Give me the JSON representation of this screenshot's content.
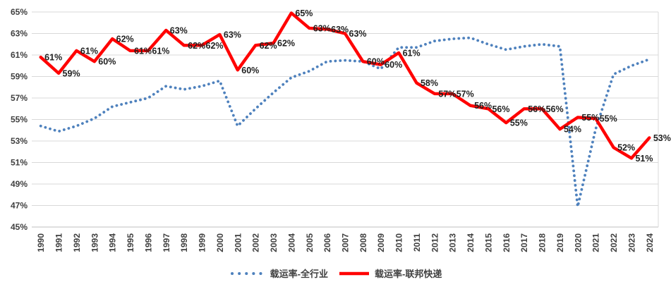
{
  "chart_data": {
    "type": "line",
    "title": "",
    "categories": [
      "1990",
      "1991",
      "1992",
      "1993",
      "1994",
      "1995",
      "1996",
      "1997",
      "1998",
      "1999",
      "2000",
      "2001",
      "2002",
      "2003",
      "2004",
      "2005",
      "2006",
      "2007",
      "2008",
      "2009",
      "2010",
      "2011",
      "2012",
      "2013",
      "2014",
      "2015",
      "2016",
      "2017",
      "2018",
      "2019",
      "2020",
      "2021",
      "2022",
      "2023",
      "2024"
    ],
    "series": [
      {
        "name": "载运率-全行业",
        "style": "dotted",
        "color": "#4E81BD",
        "values": [
          54.4,
          53.9,
          54.4,
          55.1,
          56.2,
          56.6,
          57.0,
          58.1,
          57.8,
          58.1,
          58.6,
          54.4,
          56.0,
          57.5,
          58.9,
          59.5,
          60.4,
          60.5,
          60.4,
          59.7,
          61.7,
          61.7,
          62.3,
          62.5,
          62.6,
          62.0,
          61.5,
          61.8,
          62.0,
          61.8,
          46.9,
          54.1,
          59.2,
          60.0,
          60.6
        ],
        "labels": null
      },
      {
        "name": "载运率-联邦快递",
        "style": "solid",
        "color": "#FF0000",
        "values": [
          60.8,
          59.3,
          61.4,
          60.4,
          62.5,
          61.4,
          61.4,
          63.3,
          61.9,
          61.9,
          62.9,
          59.6,
          61.9,
          62.1,
          64.9,
          63.5,
          63.4,
          63.0,
          60.4,
          60.1,
          61.2,
          58.4,
          57.4,
          57.4,
          56.3,
          56.0,
          54.7,
          56.0,
          56.0,
          54.1,
          55.2,
          55.1,
          52.4,
          51.4,
          53.3
        ],
        "labels": [
          "61%",
          "59%",
          "61%",
          "60%",
          "62%",
          "61%",
          "61%",
          "63%",
          "62%",
          "62%",
          "63%",
          "60%",
          "62%",
          "62%",
          "65%",
          "63%",
          "63%",
          "63%",
          "60%",
          "60%",
          "61%",
          "58%",
          "57%",
          "57%",
          "56%",
          "56%",
          "55%",
          "56%",
          "56%",
          "54%",
          "55%",
          "55%",
          "52%",
          "51%",
          "53%"
        ]
      }
    ],
    "xlabel": "",
    "ylabel": "",
    "ylim": [
      45,
      65
    ],
    "ytick_step": 2,
    "ytick_labels": [
      "45%",
      "47%",
      "49%",
      "51%",
      "53%",
      "55%",
      "57%",
      "59%",
      "61%",
      "63%",
      "65%"
    ],
    "grid": "horizontal",
    "legend_position": "bottom"
  },
  "style": {
    "grid_color": "#D9D9D9",
    "axis_color": "#BFBFBF",
    "tick_text_color": "#404040",
    "data_label_color": "#1F1F1F",
    "background": "#FFFFFF"
  }
}
